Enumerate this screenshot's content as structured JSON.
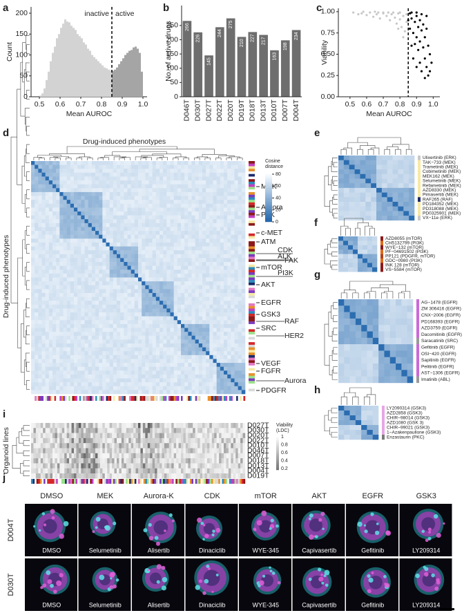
{
  "figure": {
    "panel_labels": [
      "a",
      "b",
      "c",
      "d",
      "e",
      "f",
      "g",
      "h",
      "i",
      "j"
    ]
  },
  "chart_data": [
    {
      "type": "histogram",
      "xlabel": "Mean AUROC",
      "ylabel": "Count",
      "annotations": [
        "inactive",
        "active"
      ],
      "threshold": 0.85,
      "color": "#d3d3d3",
      "active_color": "#a5a5a5",
      "bins": [
        0.5,
        0.51,
        0.52,
        0.53,
        0.54,
        0.55,
        0.56,
        0.57,
        0.58,
        0.59,
        0.6,
        0.61,
        0.62,
        0.63,
        0.64,
        0.65,
        0.66,
        0.67,
        0.68,
        0.69,
        0.7,
        0.71,
        0.72,
        0.73,
        0.74,
        0.75,
        0.76,
        0.77,
        0.78,
        0.79,
        0.8,
        0.81,
        0.82,
        0.83,
        0.84,
        0.85,
        0.86,
        0.87,
        0.88,
        0.89,
        0.9,
        0.91,
        0.92,
        0.93,
        0.94,
        0.95,
        0.96,
        0.97,
        0.98,
        0.99,
        1.0
      ],
      "values": [
        3,
        8,
        20,
        40,
        60,
        85,
        105,
        120,
        140,
        150,
        165,
        175,
        185,
        180,
        178,
        170,
        165,
        160,
        150,
        145,
        140,
        130,
        125,
        115,
        110,
        100,
        95,
        90,
        85,
        80,
        75,
        70,
        68,
        65,
        63,
        62,
        65,
        70,
        78,
        85,
        92,
        100,
        105,
        110,
        112,
        118,
        120,
        115,
        105,
        60
      ],
      "xlim": [
        0.46,
        1.02
      ],
      "ylim": [
        0,
        215
      ],
      "xticks": [
        0.5,
        0.6,
        0.7,
        0.8,
        0.9,
        {
          "value": 1,
          "label": "1.0"
        }
      ],
      "yticks": [
        0,
        50,
        100,
        150,
        200
      ]
    },
    {
      "type": "bar",
      "ylabel": "No. of active drugs",
      "color": "#6e6e6e",
      "categories": [
        "D046T",
        "D030T",
        "D027T",
        "D022T",
        "D020T",
        "D019T",
        "D018T",
        "D013T",
        "D010T",
        "D007T",
        "D004T"
      ],
      "values": [
        266,
        226,
        145,
        244,
        275,
        210,
        227,
        217,
        163,
        198,
        234
      ],
      "ylim": [
        0,
        320
      ],
      "yticks": [
        0,
        50,
        100,
        150,
        200,
        250
      ]
    },
    {
      "type": "scatter",
      "xlabel": "Mean AUROC",
      "ylabel": "Viability",
      "threshold": 0.85,
      "xlim": [
        0.43,
        1.04
      ],
      "ylim": [
        0,
        1.04
      ],
      "xticks": [
        0.5,
        0.6,
        0.7,
        0.8,
        0.9,
        {
          "value": 1,
          "label": "1.0"
        }
      ],
      "yticks": [
        {
          "value": 0,
          "label": "0.00"
        },
        {
          "value": 0.25,
          "label": "0.25"
        },
        {
          "value": 0.5,
          "label": "0.50"
        },
        {
          "value": 0.75,
          "label": "0.75"
        },
        {
          "value": 1,
          "label": "1.00"
        }
      ],
      "series": [
        {
          "color": "#c8c8c8",
          "x": [
            0.52,
            0.55,
            0.57,
            0.6,
            0.62,
            0.64,
            0.66,
            0.68,
            0.7,
            0.72,
            0.74,
            0.75,
            0.77,
            0.78,
            0.79,
            0.8,
            0.81,
            0.82,
            0.83,
            0.84,
            0.7,
            0.65,
            0.58,
            0.76,
            0.8,
            0.84,
            0.82,
            0.79,
            0.73,
            0.67
          ],
          "values": [
            0.99,
            0.97,
            0.98,
            0.96,
            0.99,
            0.94,
            0.97,
            0.92,
            0.98,
            0.95,
            0.9,
            0.97,
            0.93,
            0.86,
            0.98,
            0.91,
            0.82,
            0.95,
            0.77,
            0.88,
            0.99,
            1.0,
            1.0,
            0.99,
            0.99,
            0.97,
            0.7,
            0.8,
            0.99,
            0.99
          ]
        },
        {
          "color": "#000000",
          "x": [
            0.86,
            0.86,
            0.87,
            0.87,
            0.88,
            0.88,
            0.89,
            0.89,
            0.9,
            0.9,
            0.9,
            0.91,
            0.91,
            0.92,
            0.92,
            0.92,
            0.93,
            0.93,
            0.94,
            0.94,
            0.95,
            0.95,
            0.95,
            0.96,
            0.96,
            0.97,
            0.97,
            0.98,
            0.98,
            0.99,
            0.87,
            0.9,
            0.93,
            0.96,
            0.85
          ],
          "values": [
            0.98,
            0.8,
            0.6,
            0.92,
            0.75,
            0.45,
            0.88,
            0.62,
            0.95,
            0.7,
            0.35,
            0.82,
            0.55,
            0.9,
            0.65,
            0.4,
            0.78,
            0.3,
            0.85,
            0.58,
            0.7,
            0.45,
            0.22,
            0.8,
            0.35,
            0.6,
            0.25,
            0.5,
            0.3,
            0.4,
            0.99,
            0.99,
            0.97,
            0.95,
            0.9
          ]
        }
      ]
    }
  ],
  "panel_d": {
    "title": "Drug-induced phenotypes",
    "row_title": "Drug-induced phenotypes",
    "colorbar": {
      "title": [
        "Cosine",
        "distance"
      ],
      "ticks": [
        80,
        60,
        40,
        20,
        0
      ]
    },
    "pathways": [
      "MEK",
      "Aurora",
      "PLK",
      "c-MET",
      "ATM",
      "CDK",
      "ALK",
      "FAK",
      "mTOR",
      "PI3K",
      "AKT",
      "EGFR",
      "GSK3",
      "RAF",
      "SRC",
      "HER2",
      "VEGF",
      "FGFR",
      "Aurora",
      "PDGFR"
    ]
  },
  "panel_e": {
    "drugs": [
      "Ulixertinib (ERK)",
      "TAK−733 (MEK)",
      "Trametinib (MEK)",
      "Cobimetinib (MEK)",
      "MEK162 (MEK)",
      "Selumetinib (MEK)",
      "Refametinib (MEK)",
      "AZD8330 (MEK)",
      "Pimasertib (MEK)",
      "RAF265 (RAF)",
      "PD184352 (MEK)",
      "PD318088 (MEK)",
      "PD0325901 (MEK)",
      "VX−11e (ERK)"
    ]
  },
  "panel_f": {
    "drugs": [
      "AZD8055 (mTOR)",
      "CH5132799 (PI3K)",
      "WYE−132 (mTOR)",
      "PF−04691502 (PI3K)",
      "PP121 (PDGFR, mTOR)",
      "GDC−0980 (PI3K)",
      "INK 128 (mTOR)",
      "VS−5584 (mTOR)"
    ]
  },
  "panel_g": {
    "drugs": [
      "AG−1478 (EGFR)",
      "ZM 306416 (EGFR)",
      "CNX−2006 (EGFR)",
      "PD168393 (EGFR)",
      "AZD3759 (EGFR)",
      "Dacomitinib (EGFR)",
      "Saracatinib (SRC)",
      "Gefitinib (EGFR)",
      "OSI−420 (EGFR)",
      "Sapitinib (EGFR)",
      "Pelitinib (EGFR)",
      "AST−1306 (EGFR)",
      "Imatinib (ABL)"
    ]
  },
  "panel_h": {
    "drugs": [
      "LY2090314 (GSK3)",
      "AZD2858 (GSK3)",
      "CHIR−98014 (GSK3)",
      "AZD1080 (GSK 3)",
      "CHIR−99021 (GSK3)",
      "1−Azakenpaullone (GSK3)",
      "Enzastaurin (PKC)"
    ]
  },
  "panel_i": {
    "row_title": "Organoid lines",
    "organoids": [
      "D027T",
      "D030T",
      "D020T",
      "D022T",
      "D010T",
      "D046T",
      "D007T",
      "D018T",
      "D013T",
      "D004T",
      "D019T"
    ],
    "legend": {
      "title": [
        "Viability",
        "(LDC)"
      ],
      "ticks": [
        1,
        0.8,
        0.6,
        0.4,
        0.2
      ]
    }
  },
  "panel_j": {
    "columns": [
      "DMSO",
      "MEK",
      "Aurora-K",
      "CDK",
      "mTOR",
      "AKT",
      "EGFR",
      "GSK3"
    ],
    "rows": [
      "D004T",
      "D030T"
    ],
    "drugs": [
      "DMSO",
      "Selumetinib",
      "Alisertib",
      "Dinaciclib",
      "WYE-345",
      "Capivasertib",
      "Gefitinib",
      "LY209314"
    ]
  }
}
